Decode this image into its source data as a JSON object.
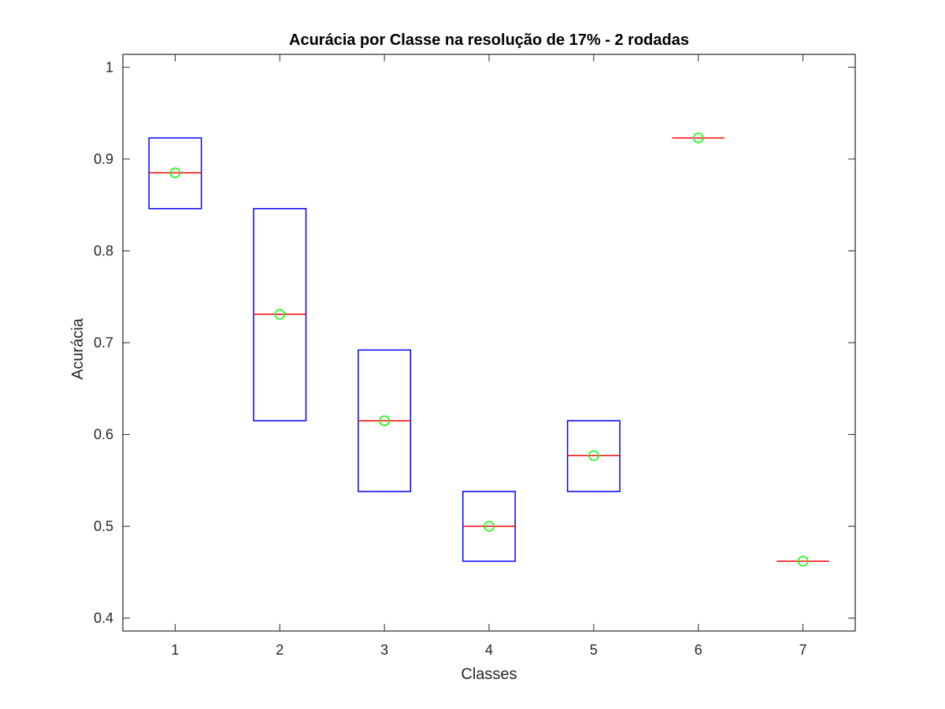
{
  "chart_data": {
    "type": "box",
    "title": "Acurácia por Classe na resolução de 17% - 2 rodadas",
    "xlabel": "Classes",
    "ylabel": "Acurácia",
    "categories": [
      "1",
      "2",
      "3",
      "4",
      "5",
      "6",
      "7"
    ],
    "ylim": [
      0.386,
      1.014
    ],
    "xlim": [
      0.5,
      7.5
    ],
    "yticks": [
      0.4,
      0.5,
      0.6,
      0.7,
      0.8,
      0.9,
      1
    ],
    "ytick_labels": [
      "0.4",
      "0.5",
      "0.6",
      "0.7",
      "0.8",
      "0.9",
      "1"
    ],
    "grid": false,
    "boxes": [
      {
        "x": 1,
        "q1": 0.846,
        "q3": 0.923,
        "median": 0.885,
        "mean": 0.885
      },
      {
        "x": 2,
        "q1": 0.615,
        "q3": 0.846,
        "median": 0.731,
        "mean": 0.731
      },
      {
        "x": 3,
        "q1": 0.538,
        "q3": 0.692,
        "median": 0.615,
        "mean": 0.615
      },
      {
        "x": 4,
        "q1": 0.462,
        "q3": 0.538,
        "median": 0.5,
        "mean": 0.5
      },
      {
        "x": 5,
        "q1": 0.538,
        "q3": 0.615,
        "median": 0.577,
        "mean": 0.577
      },
      {
        "x": 6,
        "q1": 0.923,
        "q3": 0.923,
        "median": 0.923,
        "mean": 0.923
      },
      {
        "x": 7,
        "q1": 0.462,
        "q3": 0.462,
        "median": 0.462,
        "mean": 0.462
      }
    ],
    "colors": {
      "box": "#0000ff",
      "median": "#ff0000",
      "mean_marker": "#00ff00",
      "axes": "#262626"
    }
  }
}
